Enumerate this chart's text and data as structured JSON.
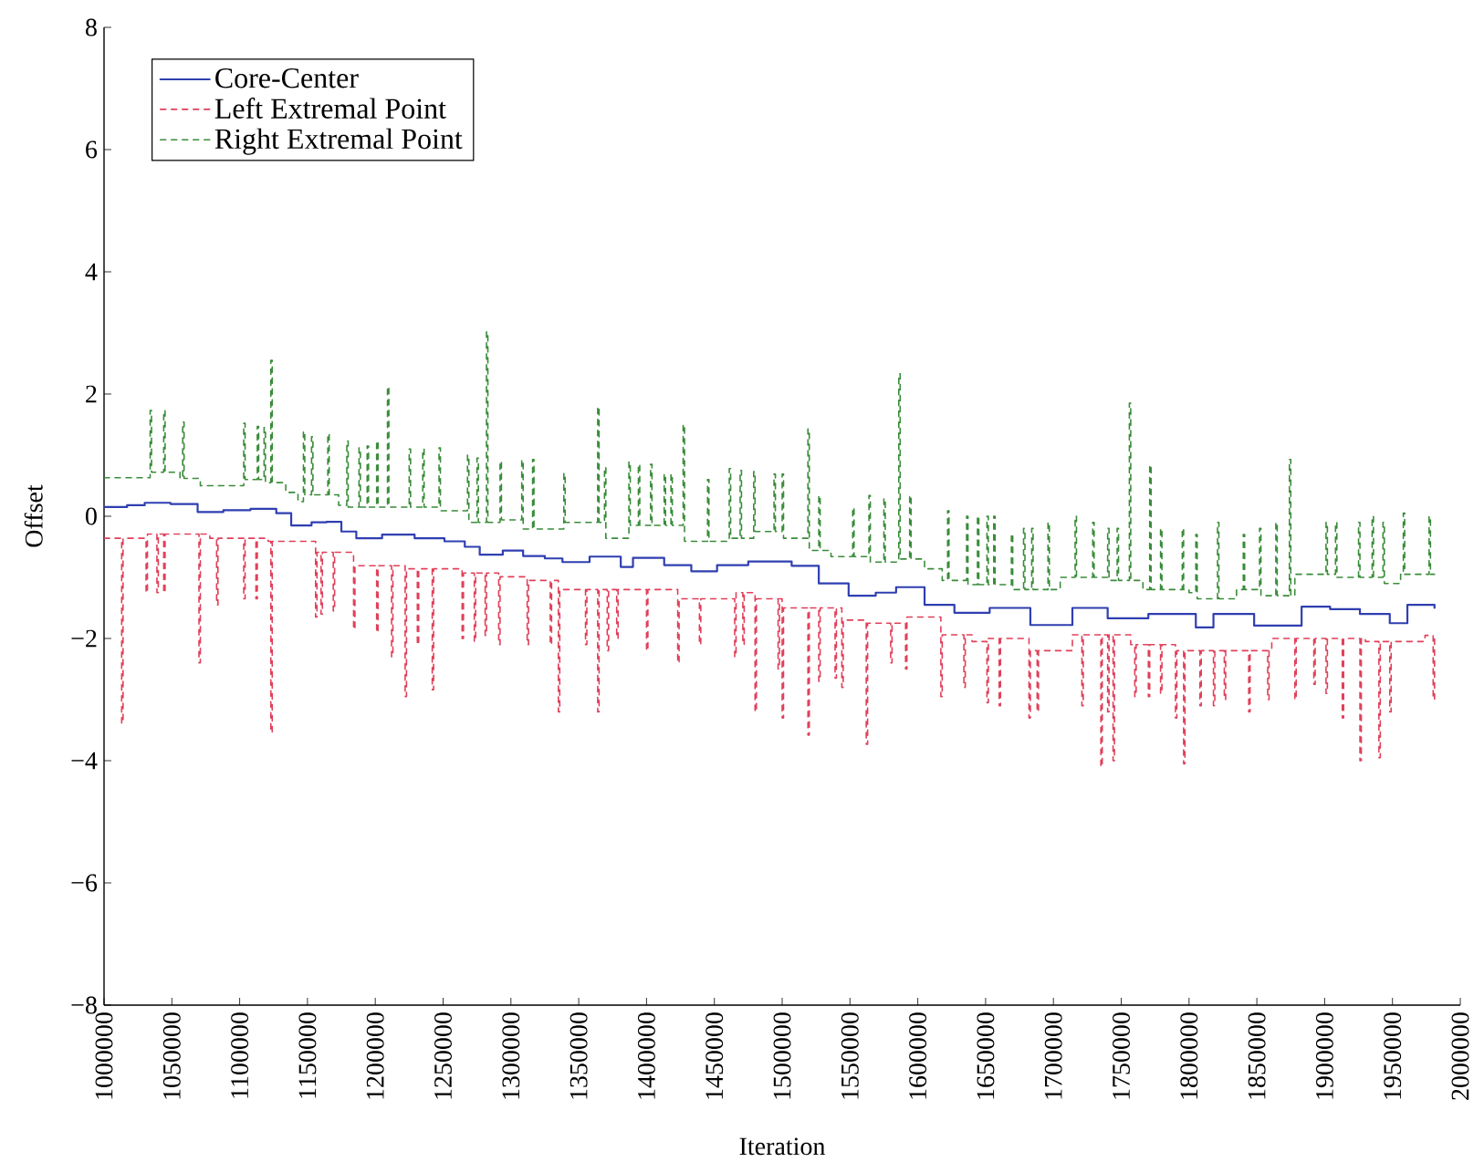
{
  "chart_data": {
    "type": "step",
    "xlabel": "Iteration",
    "ylabel": "Offset",
    "xlim": [
      1000000,
      2000000
    ],
    "ylim": [
      -8,
      8
    ],
    "xticks": [
      1000000,
      1050000,
      1100000,
      1150000,
      1200000,
      1250000,
      1300000,
      1350000,
      1400000,
      1450000,
      1500000,
      1550000,
      1600000,
      1650000,
      1700000,
      1750000,
      1800000,
      1850000,
      1900000,
      1950000,
      2000000
    ],
    "yticks": [
      {
        "value": -8,
        "label": "−8"
      },
      {
        "value": -6,
        "label": "−6"
      },
      {
        "value": -4,
        "label": "−4"
      },
      {
        "value": -2,
        "label": "−2"
      },
      0,
      2,
      4,
      6,
      8
    ],
    "legend": "top left",
    "series": [
      {
        "name": "Core-Center",
        "color": "#2f3fb0",
        "line_style": "solid",
        "x": [
          1000000,
          1017000,
          1030000,
          1049000,
          1069000,
          1088000,
          1108000,
          1127000,
          1138000,
          1153000,
          1164000,
          1175000,
          1186000,
          1205000,
          1229000,
          1251000,
          1266000,
          1277000,
          1294000,
          1309000,
          1325000,
          1338000,
          1358000,
          1381000,
          1390000,
          1413000,
          1433000,
          1452000,
          1475000,
          1507000,
          1527000,
          1549000,
          1569000,
          1584000,
          1605000,
          1627000,
          1653000,
          1683000,
          1714000,
          1740000,
          1770000,
          1805000,
          1818000,
          1848000,
          1883000,
          1904000,
          1926000,
          1948000,
          1961000,
          1981000
        ],
        "values": [
          0.15,
          0.18,
          0.22,
          0.2,
          0.07,
          0.1,
          0.12,
          0.05,
          -0.15,
          -0.1,
          -0.09,
          -0.25,
          -0.36,
          -0.3,
          -0.36,
          -0.41,
          -0.5,
          -0.63,
          -0.56,
          -0.65,
          -0.69,
          -0.75,
          -0.66,
          -0.83,
          -0.68,
          -0.8,
          -0.9,
          -0.8,
          -0.74,
          -0.81,
          -1.1,
          -1.3,
          -1.25,
          -1.16,
          -1.45,
          -1.58,
          -1.5,
          -1.78,
          -1.5,
          -1.67,
          -1.6,
          -1.82,
          -1.6,
          -1.79,
          -1.48,
          -1.52,
          -1.6,
          -1.75,
          -1.45,
          -1.5
        ]
      },
      {
        "name": "Left Extremal Point",
        "color": "#e0405a",
        "line_style": "dashed",
        "x": [
          1000000,
          1013000,
          1014000,
          1031000,
          1032000,
          1039000,
          1040000,
          1044000,
          1045000,
          1070000,
          1071000,
          1078000,
          1083000,
          1084000,
          1103000,
          1104000,
          1112000,
          1113000,
          1121000,
          1123000,
          1124000,
          1156000,
          1157000,
          1160000,
          1161000,
          1169000,
          1170000,
          1184000,
          1185000,
          1201000,
          1202000,
          1212000,
          1213000,
          1222000,
          1223000,
          1231000,
          1232000,
          1242000,
          1243000,
          1264000,
          1265000,
          1273000,
          1274000,
          1281000,
          1282000,
          1291000,
          1292000,
          1312000,
          1313000,
          1329000,
          1330000,
          1335000,
          1336000,
          1355000,
          1356000,
          1364000,
          1365000,
          1371000,
          1372000,
          1378000,
          1379000,
          1400000,
          1401000,
          1423000,
          1424000,
          1439000,
          1440000,
          1465000,
          1466000,
          1471000,
          1472000,
          1480000,
          1481000,
          1497000,
          1498000,
          1500000,
          1501000,
          1519000,
          1520000,
          1527000,
          1528000,
          1539000,
          1540000,
          1544000,
          1545000,
          1562000,
          1563000,
          1580000,
          1581000,
          1591000,
          1592000,
          1617000,
          1618000,
          1634000,
          1635000,
          1640000,
          1651000,
          1652000,
          1660000,
          1661000,
          1682000,
          1683000,
          1688000,
          1689000,
          1714000,
          1721000,
          1722000,
          1735000,
          1736000,
          1740000,
          1741000,
          1744000,
          1745000,
          1757000,
          1760000,
          1761000,
          1770000,
          1771000,
          1779000,
          1780000,
          1790000,
          1791000,
          1796000,
          1797000,
          1808000,
          1809000,
          1818000,
          1819000,
          1826000,
          1827000,
          1844000,
          1845000,
          1858000,
          1859000,
          1861000,
          1878000,
          1879000,
          1892000,
          1893000,
          1901000,
          1902000,
          1913000,
          1914000,
          1926000,
          1927000,
          1930000,
          1940000,
          1941000,
          1948000,
          1949000,
          1974000,
          1980000,
          1981000
        ],
        "values": [
          -0.36,
          -3.39,
          -0.36,
          -1.25,
          -0.29,
          -1.25,
          -0.29,
          -1.25,
          -0.29,
          -2.4,
          -0.29,
          -0.36,
          -1.45,
          -0.36,
          -1.35,
          -0.36,
          -1.35,
          -0.36,
          -0.41,
          -3.54,
          -0.41,
          -1.65,
          -0.59,
          -1.6,
          -0.59,
          -1.55,
          -0.59,
          -1.85,
          -0.81,
          -1.9,
          -0.81,
          -2.3,
          -0.81,
          -2.95,
          -0.86,
          -2.1,
          -0.86,
          -2.84,
          -0.86,
          -2.0,
          -0.93,
          -2.05,
          -0.93,
          -1.95,
          -0.93,
          -2.1,
          -0.99,
          -2.1,
          -1.05,
          -2.1,
          -1.05,
          -3.2,
          -1.2,
          -2.1,
          -1.2,
          -3.2,
          -1.2,
          -2.2,
          -1.2,
          -2.0,
          -1.2,
          -2.2,
          -1.2,
          -2.4,
          -1.35,
          -2.1,
          -1.35,
          -2.3,
          -1.25,
          -2.1,
          -1.25,
          -3.2,
          -1.35,
          -2.5,
          -1.35,
          -3.3,
          -1.5,
          -3.58,
          -1.5,
          -2.7,
          -1.5,
          -2.65,
          -1.5,
          -2.8,
          -1.7,
          -3.73,
          -1.75,
          -2.4,
          -1.75,
          -2.5,
          -1.65,
          -2.95,
          -1.94,
          -2.8,
          -1.94,
          -2.05,
          -3.05,
          -2.0,
          -3.1,
          -2.0,
          -3.3,
          -2.2,
          -3.2,
          -2.2,
          -1.94,
          -3.1,
          -1.94,
          -4.1,
          -1.94,
          -3.2,
          -1.94,
          -4.0,
          -1.94,
          -2.1,
          -2.95,
          -2.1,
          -2.95,
          -2.1,
          -2.9,
          -2.1,
          -3.3,
          -2.2,
          -4.05,
          -2.2,
          -3.1,
          -2.2,
          -3.1,
          -2.2,
          -3.0,
          -2.2,
          -3.2,
          -2.2,
          -3.0,
          -2.2,
          -2.0,
          -3.0,
          -2.0,
          -2.75,
          -2.0,
          -2.9,
          -2.0,
          -3.3,
          -2.0,
          -4.0,
          -2.0,
          -2.05,
          -3.95,
          -2.05,
          -3.2,
          -2.05,
          -1.95,
          -3.0,
          -1.95
        ]
      },
      {
        "name": "Right Extremal Point",
        "color": "#3a8c3a",
        "line_style": "dashed",
        "x": [
          1000000,
          1034000,
          1035000,
          1044000,
          1045000,
          1056000,
          1058000,
          1059000,
          1071000,
          1103000,
          1104000,
          1113000,
          1114000,
          1118000,
          1119000,
          1123000,
          1124000,
          1134000,
          1143000,
          1147000,
          1148000,
          1153000,
          1154000,
          1165000,
          1166000,
          1173000,
          1179000,
          1180000,
          1188000,
          1189000,
          1194000,
          1195000,
          1201000,
          1202000,
          1209000,
          1210000,
          1225000,
          1226000,
          1235000,
          1236000,
          1247000,
          1248000,
          1268000,
          1269000,
          1275000,
          1276000,
          1282000,
          1283000,
          1292000,
          1293000,
          1308000,
          1309000,
          1316000,
          1317000,
          1339000,
          1340000,
          1364000,
          1365000,
          1369000,
          1370000,
          1387000,
          1388000,
          1394000,
          1395000,
          1403000,
          1404000,
          1413000,
          1414000,
          1418000,
          1419000,
          1427000,
          1428000,
          1445000,
          1446000,
          1461000,
          1462000,
          1469000,
          1470000,
          1479000,
          1480000,
          1494000,
          1495000,
          1500000,
          1501000,
          1519000,
          1520000,
          1527000,
          1528000,
          1536000,
          1552000,
          1553000,
          1564000,
          1565000,
          1575000,
          1576000,
          1586000,
          1587000,
          1594000,
          1595000,
          1605000,
          1618000,
          1622000,
          1623000,
          1636000,
          1637000,
          1644000,
          1645000,
          1651000,
          1652000,
          1656000,
          1657000,
          1669000,
          1670000,
          1678000,
          1679000,
          1684000,
          1685000,
          1696000,
          1697000,
          1705000,
          1716000,
          1717000,
          1729000,
          1730000,
          1740000,
          1741000,
          1747000,
          1748000,
          1756000,
          1757000,
          1766000,
          1771000,
          1772000,
          1779000,
          1780000,
          1795000,
          1796000,
          1800000,
          1805000,
          1806000,
          1821000,
          1822000,
          1835000,
          1840000,
          1841000,
          1852000,
          1853000,
          1864000,
          1865000,
          1874000,
          1875000,
          1878000,
          1901000,
          1902000,
          1908000,
          1909000,
          1925000,
          1926000,
          1935000,
          1936000,
          1943000,
          1944000,
          1956000,
          1958000,
          1959000,
          1977000,
          1978000,
          1981000
        ],
        "values": [
          0.63,
          1.73,
          0.72,
          1.73,
          0.72,
          0.62,
          1.54,
          0.62,
          0.5,
          1.52,
          0.6,
          1.47,
          0.6,
          1.45,
          0.55,
          2.55,
          0.55,
          0.39,
          0.24,
          1.39,
          0.35,
          1.3,
          0.35,
          1.35,
          0.35,
          0.18,
          1.23,
          0.15,
          1.12,
          0.15,
          1.15,
          0.15,
          1.23,
          0.15,
          2.12,
          0.15,
          1.1,
          0.15,
          1.1,
          0.15,
          1.12,
          0.09,
          1.0,
          -0.1,
          0.95,
          -0.1,
          3.02,
          -0.1,
          0.9,
          -0.06,
          0.92,
          -0.21,
          0.93,
          -0.21,
          0.7,
          -0.1,
          1.79,
          -0.1,
          0.8,
          -0.36,
          0.89,
          -0.15,
          0.85,
          -0.15,
          0.85,
          -0.15,
          0.69,
          -0.15,
          0.69,
          -0.15,
          1.5,
          -0.41,
          0.6,
          -0.41,
          0.78,
          -0.36,
          0.75,
          -0.36,
          0.73,
          -0.25,
          0.69,
          -0.25,
          0.69,
          -0.36,
          1.43,
          -0.56,
          0.34,
          -0.56,
          -0.66,
          0.14,
          -0.66,
          0.34,
          -0.75,
          0.29,
          -0.75,
          2.33,
          -0.7,
          0.34,
          -0.7,
          -0.86,
          -1.05,
          0.09,
          -1.05,
          0.0,
          -1.12,
          0.0,
          -1.12,
          0.0,
          -1.12,
          0.0,
          -1.12,
          -0.29,
          -1.2,
          -0.2,
          -1.2,
          -0.2,
          -1.2,
          -0.1,
          -1.2,
          -1.0,
          0.0,
          -1.0,
          -0.1,
          -1.0,
          -0.2,
          -1.05,
          -0.2,
          -1.05,
          1.85,
          -1.05,
          -1.2,
          0.84,
          -1.2,
          -0.2,
          -1.2,
          -0.2,
          -1.2,
          -1.25,
          -0.3,
          -1.35,
          -0.1,
          -1.35,
          -1.2,
          -0.3,
          -1.2,
          -0.2,
          -1.3,
          -0.1,
          -1.3,
          0.93,
          -1.3,
          -0.95,
          -0.1,
          -0.95,
          -0.1,
          -1.0,
          -0.1,
          -1.0,
          0.0,
          -1.0,
          -0.1,
          -1.1,
          -0.95,
          0.05,
          -0.95,
          0.0,
          -0.95,
          -0.95
        ]
      }
    ]
  }
}
